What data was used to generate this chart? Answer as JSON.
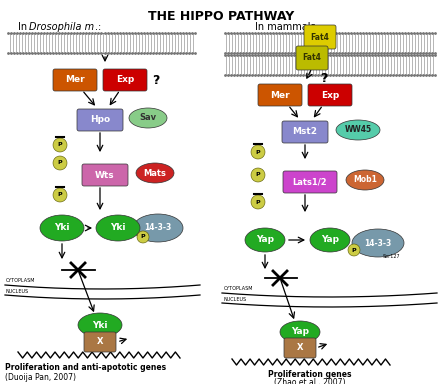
{
  "title": "THE HIPPO PATHWAY",
  "bg_color": "#ffffff",
  "footer_left": [
    "Proliferation and anti-apototic genes",
    "(Duoija Pan, 2007)"
  ],
  "footer_right": [
    "Proliferation genes",
    "(Zhao et al., 2007)"
  ]
}
